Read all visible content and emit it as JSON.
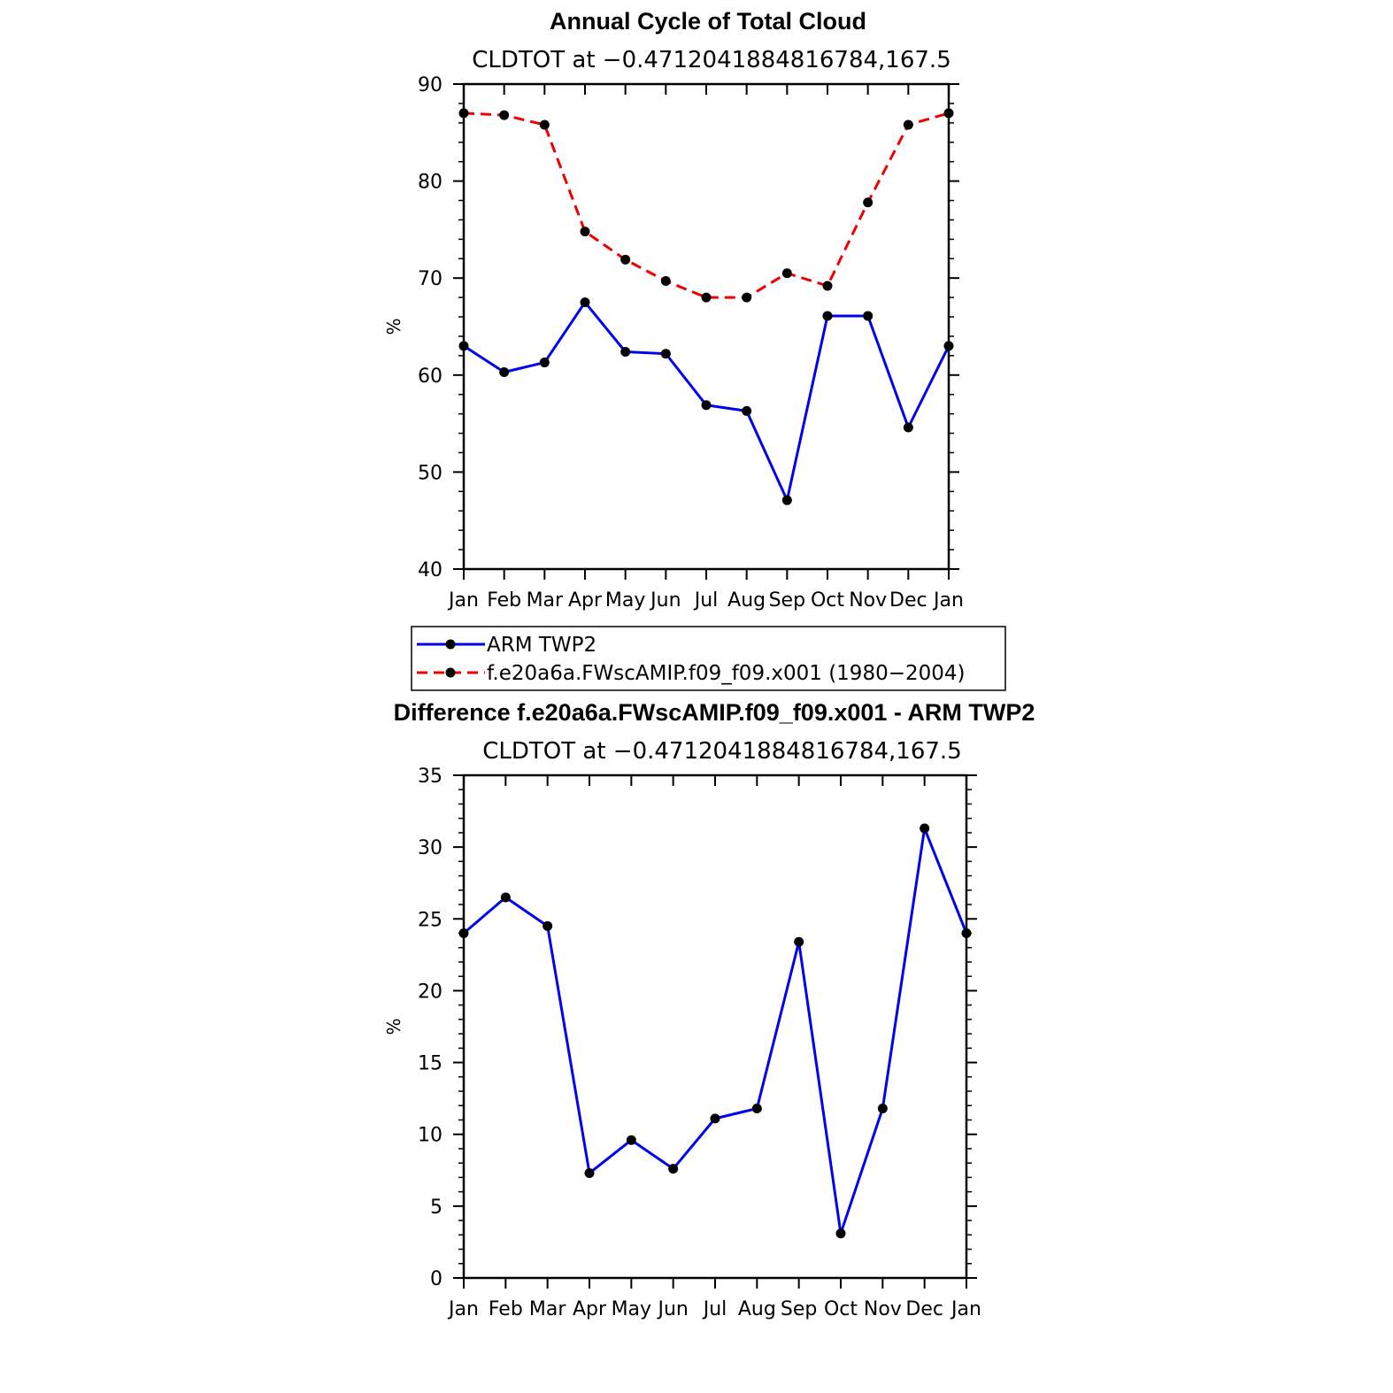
{
  "chart_data": [
    {
      "type": "line",
      "title": "Annual Cycle of Total Cloud",
      "subtitle": "CLDTOT at −0.4712041884816784,167.5",
      "xlabel": "",
      "ylabel": "%",
      "ylim": [
        40,
        90
      ],
      "yticks": [
        "40",
        "50",
        "60",
        "70",
        "80",
        "90"
      ],
      "categories": [
        "Jan",
        "Feb",
        "Mar",
        "Apr",
        "May",
        "Jun",
        "Jul",
        "Aug",
        "Sep",
        "Oct",
        "Nov",
        "Dec",
        "Jan"
      ],
      "series": [
        {
          "name": "ARM TWP2",
          "color": "#0000ee",
          "dash": "solid",
          "values": [
            63.0,
            60.3,
            61.3,
            67.5,
            62.4,
            62.2,
            56.9,
            56.3,
            47.1,
            66.1,
            66.1,
            54.6,
            63.0
          ]
        },
        {
          "name": "f.e20a6a.FWscAMIP.f09_f09.x001 (1980−2004)",
          "color": "#ee0000",
          "dash": "dashed",
          "values": [
            87.0,
            86.8,
            85.8,
            74.8,
            71.9,
            69.7,
            68.0,
            68.0,
            70.5,
            69.2,
            77.8,
            85.8,
            87.0
          ]
        }
      ],
      "legend_position": "below"
    },
    {
      "type": "line",
      "title": "Difference f.e20a6a.FWscAMIP.f09_f09.x001 - ARM TWP2",
      "subtitle": "CLDTOT at −0.4712041884816784,167.5",
      "xlabel": "",
      "ylabel": "%",
      "ylim": [
        0,
        35
      ],
      "yticks": [
        "0",
        "5",
        "10",
        "15",
        "20",
        "25",
        "30",
        "35"
      ],
      "categories": [
        "Jan",
        "Feb",
        "Mar",
        "Apr",
        "May",
        "Jun",
        "Jul",
        "Aug",
        "Sep",
        "Oct",
        "Nov",
        "Dec",
        "Jan"
      ],
      "series": [
        {
          "name": "Difference",
          "color": "#0000ee",
          "dash": "solid",
          "values": [
            24.0,
            26.5,
            24.5,
            7.3,
            9.6,
            7.6,
            11.1,
            11.8,
            23.4,
            3.1,
            11.8,
            31.3,
            24.0
          ]
        }
      ]
    }
  ]
}
